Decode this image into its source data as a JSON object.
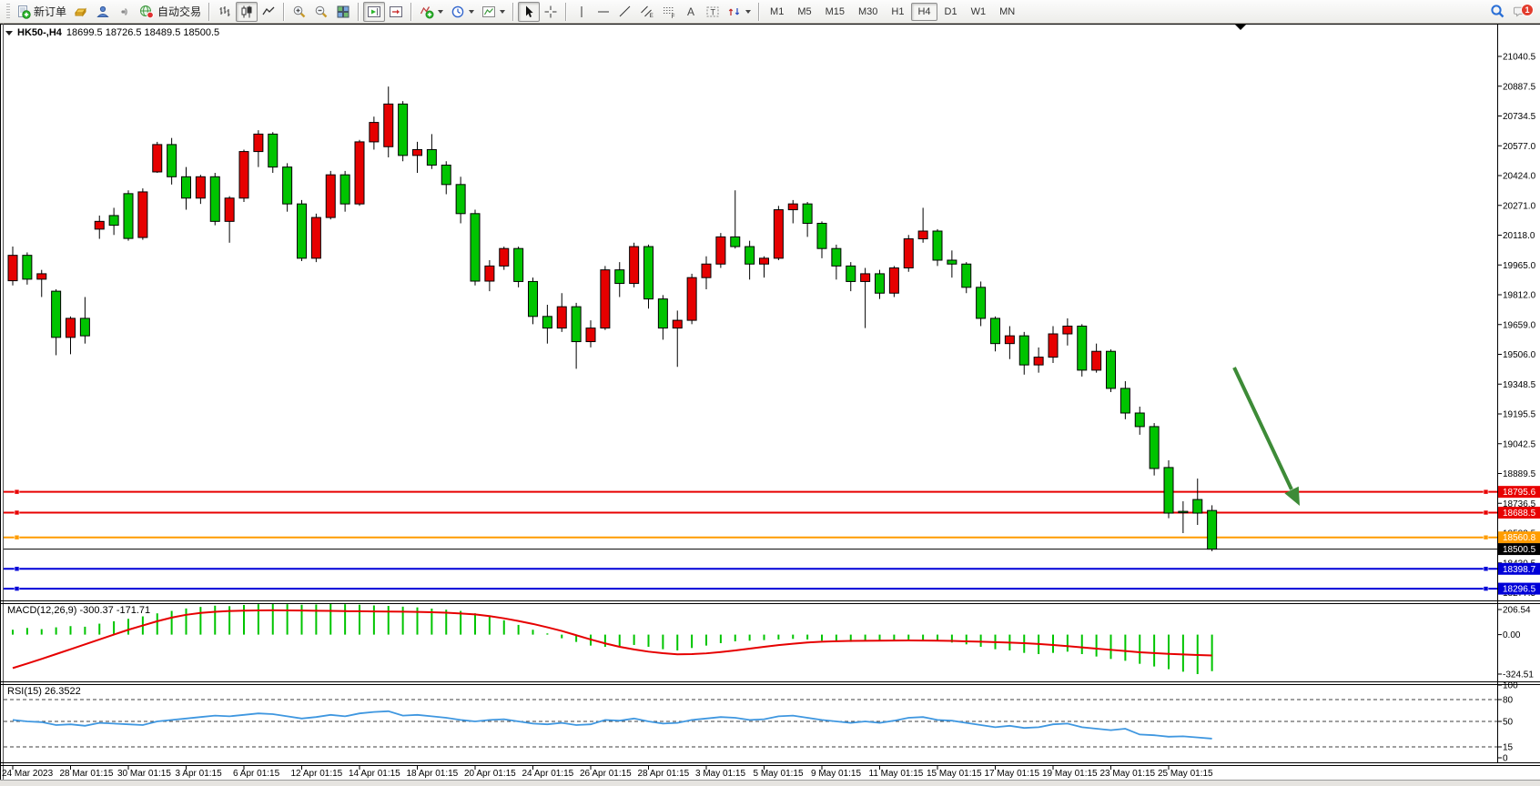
{
  "toolbar": {
    "new_order_label": "新订单",
    "autotrade_label": "自动交易",
    "timeframes": [
      "M1",
      "M5",
      "M15",
      "M30",
      "H1",
      "H4",
      "D1",
      "W1",
      "MN"
    ],
    "active_timeframe": "H4",
    "notifications_badge": "1",
    "icons": [
      "new-order-icon",
      "market-watch-icon",
      "navigator-icon",
      "signals-icon",
      "autotrade-globe-icon",
      "bar-chart-icon",
      "candlestick-chart-icon",
      "line-chart-icon",
      "zoom-in-icon",
      "zoom-out-icon",
      "tile-windows-icon",
      "auto-scroll-icon",
      "chart-shift-icon",
      "indicators-icon",
      "periods-clock-icon",
      "templates-icon",
      "cursor-icon",
      "crosshair-icon",
      "vertical-line-icon",
      "horizontal-line-icon",
      "trendline-icon",
      "equidistant-channel-icon",
      "fibonacci-icon",
      "text-icon",
      "text-label-icon",
      "arrows-icon",
      "search-icon",
      "notifications-icon"
    ]
  },
  "chart_data": {
    "type": "candlestick",
    "title_symbol": "HK50-,H4",
    "title_ohlc": "18699.5 18726.5 18489.5 18500.5",
    "symbol": "HK50-",
    "timeframe": "H4",
    "color_convention": "red = bullish close>open, green = bearish close<open (Chinese convention)",
    "bull_color": "#e60000",
    "bear_color": "#00c400",
    "last_bar_ohlc": {
      "open": 18699.5,
      "high": 18726.5,
      "low": 18489.5,
      "close": 18500.5
    },
    "y_axis_ticks": [
      "21040.5",
      "20887.5",
      "20734.5",
      "20577.0",
      "20424.0",
      "20271.0",
      "20118.0",
      "19965.0",
      "19812.0",
      "19659.0",
      "19506.0",
      "19348.5",
      "19195.5",
      "19042.5",
      "18889.5",
      "18736.5",
      "18583.5",
      "18430.5",
      "18277.5"
    ],
    "x_axis_labels": [
      "24 Mar 2023",
      "28 Mar 01:15",
      "30 Mar 01:15",
      "3 Apr 01:15",
      "6 Apr 01:15",
      "12 Apr 01:15",
      "14 Apr 01:15",
      "18 Apr 01:15",
      "20 Apr 01:15",
      "24 Apr 01:15",
      "26 Apr 01:15",
      "28 Apr 01:15",
      "3 May 01:15",
      "5 May 01:15",
      "9 May 01:15",
      "11 May 01:15",
      "15 May 01:15",
      "17 May 01:15",
      "19 May 01:15",
      "23 May 01:15",
      "25 May 01:15"
    ],
    "horizontal_lines": [
      {
        "price": 18795.6,
        "label": "18795.6",
        "color": "#e80000"
      },
      {
        "price": 18688.5,
        "label": "18688.5",
        "color": "#e80000"
      },
      {
        "price": 18560.8,
        "label": "18560.8",
        "color": "#ff9c00"
      },
      {
        "price": 18398.7,
        "label": "18398.7",
        "color": "#0000d8"
      },
      {
        "price": 18296.5,
        "label": "18296.5",
        "color": "#0000d8"
      }
    ],
    "current_price": {
      "price": 18500.5,
      "label": "18500.5",
      "color": "#000000"
    },
    "annotations": [
      {
        "type": "arrow",
        "color": "#3d8b37",
        "direction": "down-right",
        "note": "bearish projection arrow pointing to support zone"
      }
    ],
    "candles_ohlc": [
      [
        19884,
        20060,
        19860,
        20015
      ],
      [
        20015,
        20030,
        19864,
        19892
      ],
      [
        19892,
        19940,
        19800,
        19920
      ],
      [
        19830,
        19840,
        19500,
        19592
      ],
      [
        19592,
        19700,
        19505,
        19690
      ],
      [
        19690,
        19800,
        19560,
        19600
      ],
      [
        20150,
        20220,
        20100,
        20190
      ],
      [
        20220,
        20260,
        20120,
        20170
      ],
      [
        20333,
        20350,
        20090,
        20102
      ],
      [
        20107,
        20360,
        20095,
        20342
      ],
      [
        20445,
        20600,
        20440,
        20586
      ],
      [
        20586,
        20620,
        20380,
        20420
      ],
      [
        20420,
        20470,
        20250,
        20310
      ],
      [
        20310,
        20430,
        20280,
        20420
      ],
      [
        20420,
        20440,
        20170,
        20190
      ],
      [
        20190,
        20320,
        20080,
        20310
      ],
      [
        20310,
        20560,
        20290,
        20550
      ],
      [
        20550,
        20660,
        20470,
        20640
      ],
      [
        20640,
        20650,
        20440,
        20470
      ],
      [
        20470,
        20490,
        20240,
        20280
      ],
      [
        20280,
        20300,
        19985,
        20000
      ],
      [
        20000,
        20230,
        19980,
        20210
      ],
      [
        20210,
        20450,
        20200,
        20430
      ],
      [
        20430,
        20450,
        20240,
        20280
      ],
      [
        20280,
        20610,
        20270,
        20600
      ],
      [
        20600,
        20730,
        20560,
        20700
      ],
      [
        20575,
        20885,
        20520,
        20795
      ],
      [
        20795,
        20810,
        20500,
        20530
      ],
      [
        20530,
        20600,
        20440,
        20560
      ],
      [
        20560,
        20640,
        20460,
        20480
      ],
      [
        20480,
        20500,
        20330,
        20380
      ],
      [
        20380,
        20420,
        20180,
        20230
      ],
      [
        20230,
        20250,
        19860,
        19882
      ],
      [
        19882,
        19990,
        19830,
        19960
      ],
      [
        19960,
        20060,
        19940,
        20050
      ],
      [
        20050,
        20060,
        19850,
        19880
      ],
      [
        19880,
        19900,
        19660,
        19700
      ],
      [
        19700,
        19760,
        19560,
        19640
      ],
      [
        19640,
        19820,
        19620,
        19750
      ],
      [
        19750,
        19770,
        19430,
        19570
      ],
      [
        19570,
        19680,
        19540,
        19640
      ],
      [
        19640,
        19960,
        19630,
        19940
      ],
      [
        19940,
        19980,
        19800,
        19870
      ],
      [
        19870,
        20080,
        19850,
        20060
      ],
      [
        20060,
        20070,
        19740,
        19790
      ],
      [
        19790,
        19810,
        19580,
        19640
      ],
      [
        19640,
        19730,
        19440,
        19680
      ],
      [
        19680,
        19920,
        19660,
        19900
      ],
      [
        19900,
        20010,
        19840,
        19970
      ],
      [
        19970,
        20130,
        19950,
        20110
      ],
      [
        20110,
        20350,
        20050,
        20060
      ],
      [
        20060,
        20090,
        19890,
        19970
      ],
      [
        19970,
        20010,
        19900,
        20000
      ],
      [
        20000,
        20270,
        19990,
        20250
      ],
      [
        20250,
        20300,
        20180,
        20280
      ],
      [
        20280,
        20290,
        20110,
        20180
      ],
      [
        20180,
        20190,
        20000,
        20050
      ],
      [
        20050,
        20070,
        19890,
        19960
      ],
      [
        19960,
        19980,
        19830,
        19880
      ],
      [
        19880,
        19950,
        19640,
        19920
      ],
      [
        19920,
        19940,
        19790,
        19820
      ],
      [
        19820,
        19960,
        19800,
        19950
      ],
      [
        19950,
        20120,
        19930,
        20100
      ],
      [
        20100,
        20260,
        20080,
        20140
      ],
      [
        20140,
        20150,
        19960,
        19990
      ],
      [
        19990,
        20040,
        19900,
        19970
      ],
      [
        19970,
        19980,
        19820,
        19850
      ],
      [
        19850,
        19880,
        19650,
        19690
      ],
      [
        19690,
        19700,
        19520,
        19560
      ],
      [
        19560,
        19650,
        19480,
        19600
      ],
      [
        19600,
        19620,
        19400,
        19450
      ],
      [
        19450,
        19540,
        19410,
        19490
      ],
      [
        19490,
        19650,
        19460,
        19610
      ],
      [
        19610,
        19690,
        19550,
        19650
      ],
      [
        19650,
        19660,
        19390,
        19423
      ],
      [
        19423,
        19560,
        19410,
        19520
      ],
      [
        19520,
        19530,
        19310,
        19329
      ],
      [
        19329,
        19366,
        19170,
        19202
      ],
      [
        19202,
        19235,
        19090,
        19132
      ],
      [
        19132,
        19150,
        18880,
        18916
      ],
      [
        18921,
        18958,
        18660,
        18686
      ],
      [
        18695,
        18747,
        18583,
        18688
      ],
      [
        18756,
        18864,
        18625,
        18686
      ],
      [
        18699.5,
        18726.5,
        18489.5,
        18500.5
      ]
    ],
    "indicators": {
      "macd": {
        "label": "MACD(12,26,9) -300.37 -171.71",
        "params": [
          12,
          26,
          9
        ],
        "main_last": -300.37,
        "signal_last": -171.71,
        "axis_labels": [
          "206.54",
          "0.00",
          "-324.51"
        ],
        "histogram_color": "#00c400",
        "signal_color": "#e60000",
        "histogram": [
          40,
          55,
          45,
          60,
          70,
          65,
          90,
          110,
          130,
          150,
          175,
          195,
          215,
          228,
          238,
          234,
          244,
          250,
          254,
          250,
          246,
          248,
          252,
          250,
          246,
          240,
          236,
          230,
          224,
          214,
          205,
          195,
          175,
          150,
          118,
          80,
          40,
          10,
          -30,
          -60,
          -90,
          -100,
          -95,
          -85,
          -100,
          -120,
          -130,
          -110,
          -90,
          -70,
          -55,
          -50,
          -45,
          -40,
          -35,
          -40,
          -50,
          -55,
          -60,
          -55,
          -50,
          -45,
          -40,
          -45,
          -55,
          -65,
          -80,
          -100,
          -120,
          -130,
          -150,
          -160,
          -150,
          -140,
          -160,
          -180,
          -200,
          -215,
          -240,
          -262,
          -284,
          -305,
          -324.51,
          -300.37
        ],
        "signal": [
          -275,
          -238,
          -200,
          -160,
          -120,
          -80,
          -40,
          0,
          40,
          75,
          110,
          140,
          163,
          178,
          188,
          194,
          197,
          199,
          200,
          199,
          198,
          196,
          195,
          193,
          192,
          191,
          190,
          189,
          187,
          184,
          180,
          174,
          166,
          152,
          134,
          112,
          88,
          60,
          30,
          -5,
          -40,
          -72,
          -100,
          -122,
          -140,
          -153,
          -162,
          -160,
          -154,
          -143,
          -130,
          -115,
          -100,
          -86,
          -75,
          -65,
          -58,
          -54,
          -52,
          -51,
          -50,
          -49,
          -48,
          -49,
          -50,
          -52,
          -55,
          -58,
          -62,
          -66,
          -70,
          -77,
          -85,
          -95,
          -105,
          -115,
          -125,
          -135,
          -145,
          -152,
          -158,
          -163,
          -168,
          -171.71
        ]
      },
      "rsi": {
        "label": "RSI(15) 26.3522",
        "period": 15,
        "last": 26.3522,
        "line_color": "#3f97e0",
        "levels": [
          80,
          50,
          15
        ],
        "axis_labels": [
          "100",
          "80",
          "50",
          "15",
          "0"
        ],
        "values": [
          52,
          50,
          49,
          45,
          46,
          44,
          48,
          47,
          46,
          45,
          50,
          52,
          54,
          56,
          58,
          57,
          59,
          61,
          60,
          57,
          54,
          56,
          59,
          57,
          61,
          63,
          64,
          58,
          59,
          57,
          55,
          52,
          50,
          52,
          53,
          50,
          47,
          46,
          48,
          45,
          46,
          52,
          51,
          54,
          50,
          47,
          48,
          52,
          54,
          56,
          55,
          52,
          53,
          57,
          58,
          55,
          52,
          50,
          48,
          50,
          48,
          51,
          55,
          56,
          52,
          51,
          48,
          45,
          42,
          44,
          41,
          42,
          46,
          47,
          42,
          40,
          38,
          40,
          32,
          31,
          29,
          29.5,
          28,
          26.35
        ]
      }
    }
  }
}
